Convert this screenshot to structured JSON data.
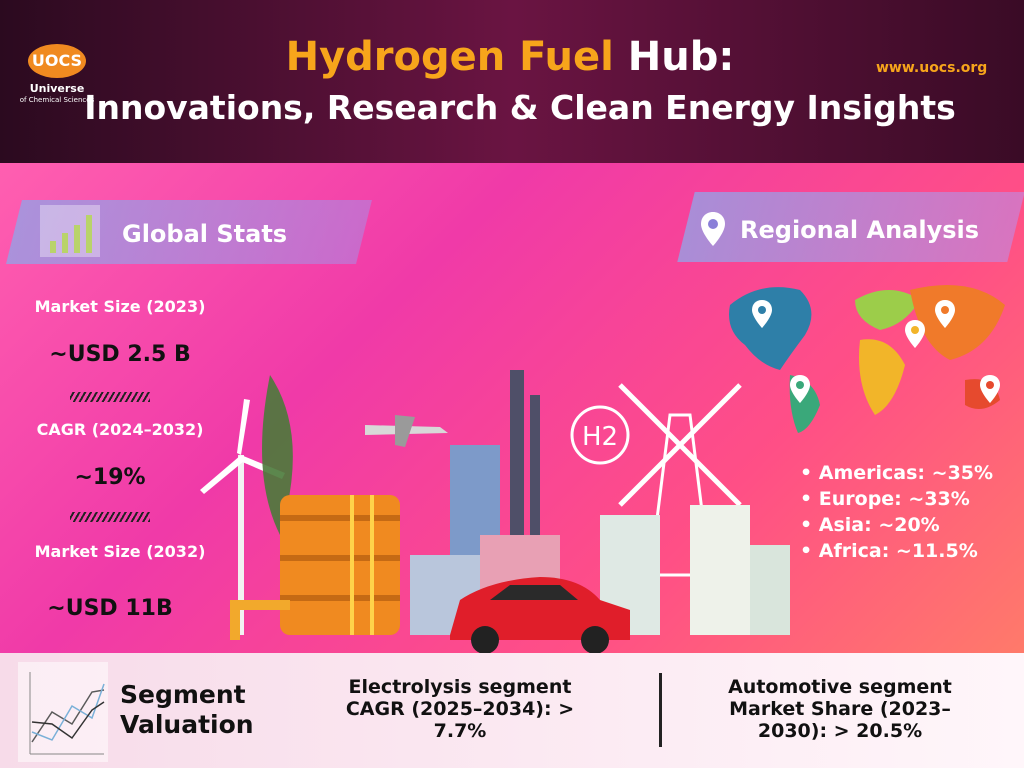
{
  "header": {
    "logo_text": "UOCS",
    "logo_subtitle": "Universe",
    "logo_subtitle_small": "of Chemical Sciences",
    "title_orange": "Hydrogen Fuel",
    "title_white": "Hub:",
    "subtitle": "Innovations, Research & Clean Energy Insights",
    "url": "www.uocs.org"
  },
  "global_stats": {
    "heading": "Global Stats",
    "items": [
      {
        "label": "Market Size (2023)",
        "value": "~USD 2.5 B"
      },
      {
        "label": "CAGR (2024–2032)",
        "value": "~19%"
      },
      {
        "label": "Market Size (2032)",
        "value": "~USD 11B"
      }
    ]
  },
  "regional": {
    "heading": "Regional Analysis",
    "items": [
      "Americas: ~35%",
      "Europe: ~33%",
      "Asia: ~20%",
      "Africa: ~11.5%"
    ]
  },
  "illustration": {
    "h2_label": "H2"
  },
  "segments": {
    "title_line1": "Segment",
    "title_line2": "Valuation",
    "electrolysis": [
      "Electrolysis segment",
      "CAGR (2025–2034): >",
      "7.7%"
    ],
    "automotive": [
      "Automotive segment",
      "Market Share (2023–",
      "2030): > 20.5%"
    ]
  },
  "colors": {
    "accent_orange": "#f7a51b",
    "pink": "#f03aa8",
    "car_red": "#e01e2a"
  }
}
